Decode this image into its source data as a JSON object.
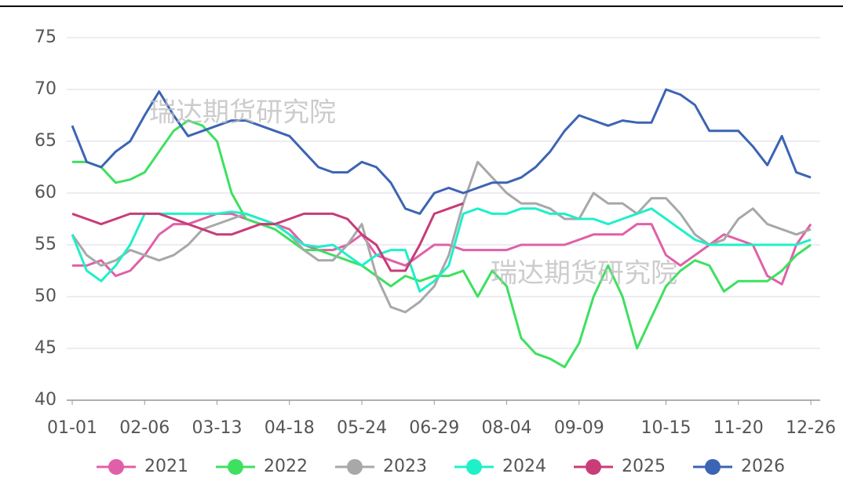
{
  "chart_data": {
    "type": "line",
    "watermark": "瑞达期货研究院",
    "categories": [
      "01-01",
      null,
      null,
      null,
      null,
      "02-06",
      null,
      null,
      null,
      null,
      "03-13",
      null,
      null,
      null,
      null,
      "04-18",
      null,
      null,
      null,
      null,
      "05-24",
      null,
      null,
      null,
      null,
      "06-29",
      null,
      null,
      null,
      null,
      "08-04",
      null,
      null,
      null,
      null,
      "09-09",
      null,
      null,
      null,
      null,
      null,
      "10-15",
      null,
      null,
      null,
      null,
      "11-20",
      null,
      null,
      null,
      null,
      "12-26"
    ],
    "ylim": [
      40,
      75
    ],
    "yticks": [
      40,
      45,
      50,
      55,
      60,
      65,
      70,
      75
    ],
    "grid": true,
    "series": [
      {
        "name": "2021",
        "color": "#e060a8",
        "values": [
          53,
          53,
          53.5,
          52,
          52.5,
          54,
          56,
          57,
          57,
          57.5,
          58,
          58,
          57.5,
          57,
          57,
          56.5,
          55,
          54.5,
          54.5,
          55,
          56,
          54,
          53.5,
          53,
          54,
          55,
          55,
          54.5,
          54.5,
          54.5,
          54.5,
          55,
          55,
          55,
          55,
          55.5,
          56,
          56,
          56,
          57,
          57,
          54,
          53,
          54,
          55,
          56,
          55.5,
          55,
          52,
          51.2,
          55,
          57
        ]
      },
      {
        "name": "2022",
        "color": "#3ee060",
        "values": [
          63,
          63,
          62.5,
          61,
          61.3,
          62,
          64,
          66,
          67,
          66.5,
          65,
          60,
          57.5,
          57,
          56.5,
          55.5,
          54.5,
          54.5,
          54,
          53.5,
          53,
          52,
          51,
          52,
          51.5,
          52,
          52,
          52.5,
          50,
          52.5,
          51,
          46,
          44.5,
          44,
          43.2,
          45.5,
          50,
          53,
          50,
          45,
          48,
          51,
          52.5,
          53.5,
          53,
          50.5,
          51.5,
          51.5,
          51.5,
          52.5,
          54,
          55
        ]
      },
      {
        "name": "2023",
        "color": "#a8a8a8",
        "values": [
          56,
          54,
          53,
          53.5,
          54.5,
          54,
          53.5,
          54,
          55,
          56.5,
          57,
          57.5,
          58,
          57.5,
          57,
          56,
          54.5,
          53.5,
          53.5,
          55,
          57,
          52,
          49,
          48.5,
          49.5,
          51,
          54,
          59,
          63,
          61.5,
          60,
          59,
          59,
          58.5,
          57.5,
          57.5,
          60,
          59,
          59,
          58,
          59.5,
          59.5,
          58,
          56,
          55,
          55.5,
          57.5,
          58.5,
          57,
          56.5,
          56,
          56.5
        ]
      },
      {
        "name": "2024",
        "color": "#1ef0c8",
        "values": [
          56,
          52.5,
          51.5,
          53,
          55,
          58,
          58,
          58,
          58,
          58,
          58,
          58.2,
          58,
          57.5,
          57,
          56,
          55,
          54.8,
          55,
          54,
          53,
          54,
          54.5,
          54.5,
          50.5,
          51.5,
          53,
          58,
          58.5,
          58,
          58,
          58.5,
          58.5,
          58,
          58,
          57.5,
          57.5,
          57,
          57.5,
          58,
          58.5,
          57.5,
          56.5,
          55.5,
          55,
          55,
          55,
          55,
          55,
          55,
          55,
          55.5
        ]
      },
      {
        "name": "2025",
        "color": "#c83c78",
        "values": [
          58,
          57.5,
          57,
          57.5,
          58,
          58,
          58,
          57.5,
          57,
          56.5,
          56,
          56,
          56.5,
          57,
          57,
          57.5,
          58,
          58,
          58,
          57.5,
          56,
          55,
          52.5,
          52.5,
          55,
          58,
          58.5,
          59,
          null,
          null,
          null,
          null,
          null,
          null,
          null,
          null,
          null,
          null,
          null,
          null,
          null,
          null,
          null,
          null,
          null,
          null,
          null,
          null,
          null,
          null,
          null,
          null
        ]
      },
      {
        "name": "2026",
        "color": "#3c64b4",
        "values": [
          66.5,
          63,
          62.5,
          64,
          65,
          67.5,
          69.8,
          67.5,
          65.5,
          66,
          66.5,
          67,
          67,
          66.5,
          66,
          65.5,
          64,
          62.5,
          62,
          62,
          63,
          62.5,
          61,
          58.5,
          58,
          60,
          60.5,
          60,
          60.5,
          61,
          61,
          61.5,
          62.5,
          64,
          66,
          67.5,
          67,
          66.5,
          67,
          66.8,
          66.8,
          70,
          69.5,
          68.5,
          66,
          66,
          66,
          64.5,
          62.7,
          65.5,
          62,
          61.5
        ]
      }
    ]
  }
}
